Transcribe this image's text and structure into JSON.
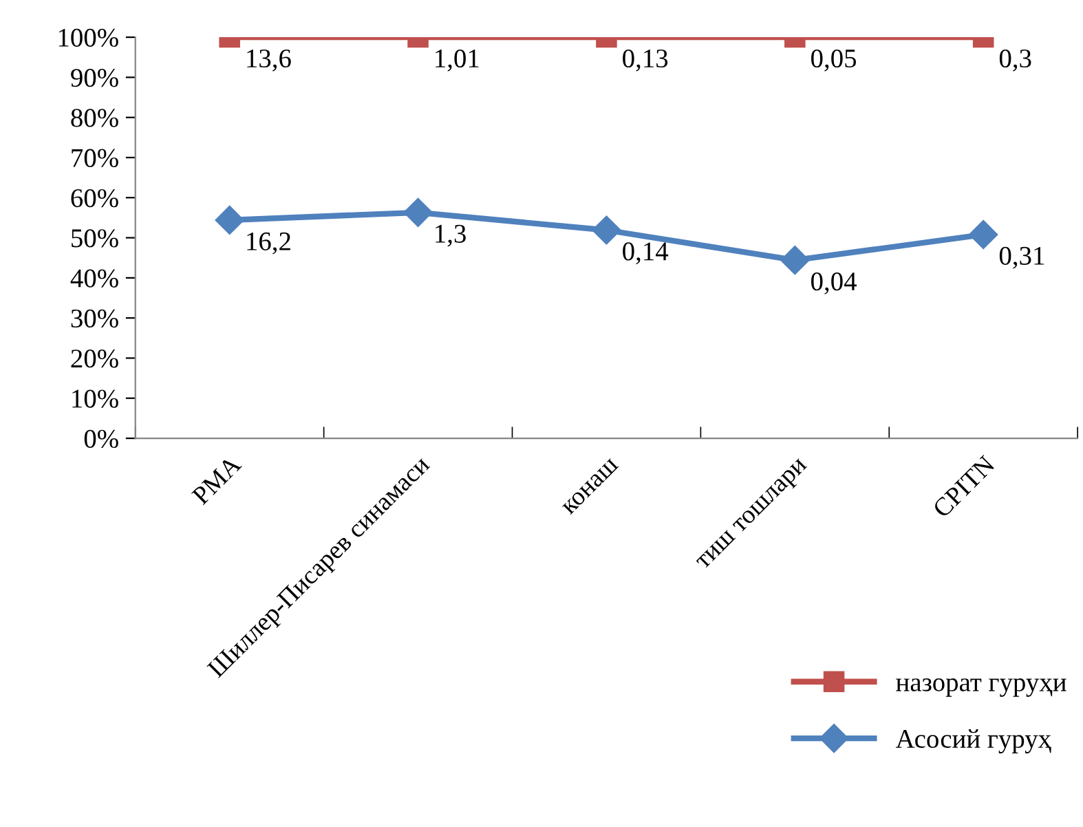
{
  "chart_data": {
    "type": "line",
    "categories": [
      "РМА",
      "Шиллер-Писарев синамаси",
      "конаш",
      "тиш тошлари",
      "CPITN"
    ],
    "series": [
      {
        "name": "назорат гуруҳи",
        "color": "#c0504d",
        "marker": "square",
        "values": [
          100,
          100,
          100,
          100,
          100
        ]
      },
      {
        "name": "Асосий гуруҳ",
        "color": "#4f81bd",
        "marker": "diamond",
        "values": [
          54.4,
          56.3,
          51.9,
          44.4,
          50.8
        ]
      }
    ],
    "ylim": [
      0,
      100
    ],
    "yticks": [
      {
        "value": 0,
        "label": "0%"
      },
      {
        "value": 10,
        "label": "10%"
      },
      {
        "value": 20,
        "label": "20%"
      },
      {
        "value": 30,
        "label": "30%"
      },
      {
        "value": 40,
        "label": "40%"
      },
      {
        "value": 50,
        "label": "50%"
      },
      {
        "value": 60,
        "label": "60%"
      },
      {
        "value": 70,
        "label": "70%"
      },
      {
        "value": 80,
        "label": "80%"
      },
      {
        "value": 90,
        "label": "90%"
      },
      {
        "value": 100,
        "label": "100%"
      }
    ],
    "annotations": [
      {
        "text": "13,6",
        "x": "РМА",
        "y": 100
      },
      {
        "text": "1,01",
        "x": "Шиллер-Писарев синамаси",
        "y": 100
      },
      {
        "text": "0,13",
        "x": "конаш",
        "y": 100
      },
      {
        "text": "0,05",
        "x": "тиш тошлари",
        "y": 100
      },
      {
        "text": "0,3",
        "x": "CPITN",
        "y": 100
      },
      {
        "text": "16,2",
        "x": "РМА",
        "y": 54.4
      },
      {
        "text": "1,3",
        "x": "Шиллер-Писарев синамаси",
        "y": 56.3
      },
      {
        "text": "0,14",
        "x": "конаш",
        "y": 51.9
      },
      {
        "text": "0,04",
        "x": "тиш тошлари",
        "y": 44.4
      },
      {
        "text": "0,31",
        "x": "CPITN",
        "y": 50.8
      }
    ],
    "grid": false,
    "legend": "bottom right"
  }
}
